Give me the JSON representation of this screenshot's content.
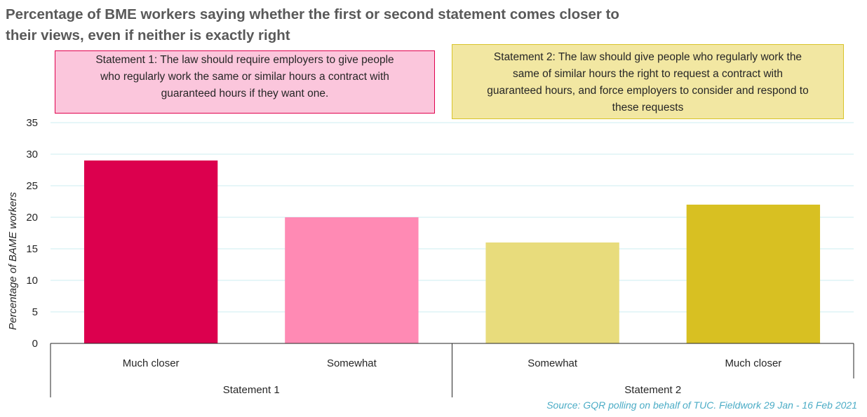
{
  "title_lines": [
    "Percentage of BME workers saying whether the first or second statement comes closer to",
    "their views, even if neither is exactly right"
  ],
  "statement1_lines": [
    "Statement 1: The law should require employers to give people",
    "who regularly work the same or similar hours a contract with",
    "guaranteed hours if they want one."
  ],
  "statement2_lines": [
    "Statement 2: The law should give people who regularly work the",
    "same of similar hours the right to request a contract with",
    "guaranteed hours, and force employers to consider and respond to",
    "these requests"
  ],
  "source": "Source: GQR polling on behalf of TUC. Fieldwork 29 Jan - 16 Feb 2021",
  "chart_data": {
    "type": "bar",
    "ylabel": "Percentage of BAME workers",
    "ylim": [
      0,
      35
    ],
    "yticks": [
      0,
      5,
      10,
      15,
      20,
      25,
      30,
      35
    ],
    "grid": true,
    "categories": [
      "Much closer",
      "Somewhat",
      "Somewhat",
      "Much closer"
    ],
    "groups": [
      {
        "label": "Statement 1",
        "span": [
          0,
          1
        ]
      },
      {
        "label": "Statement 2",
        "span": [
          2,
          3
        ]
      }
    ],
    "values": [
      29,
      20,
      16,
      22
    ],
    "colors": [
      "#dc004e",
      "#ff8ab4",
      "#e8dc7c",
      "#d8c022"
    ]
  }
}
